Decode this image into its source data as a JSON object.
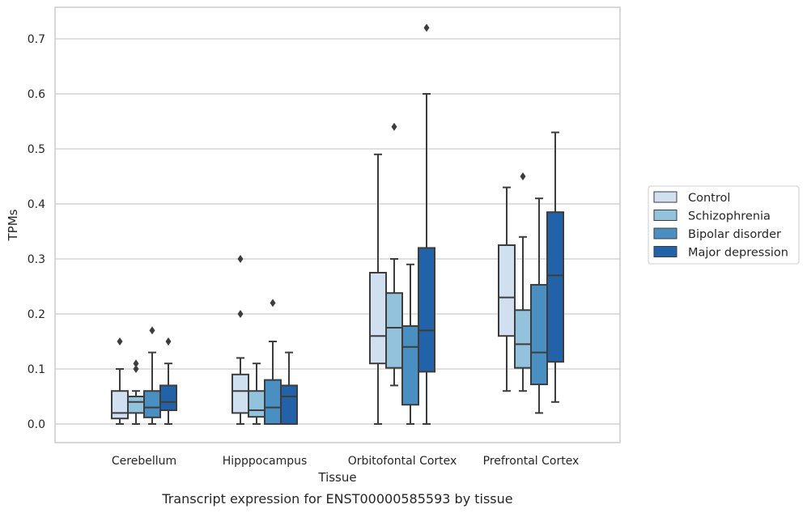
{
  "chart_data": {
    "type": "boxplot",
    "xlabel": "Tissue",
    "ylabel": "TPMs",
    "caption": "Transcript expression for ENST00000585593 by tissue",
    "ylim": [
      -0.035,
      0.76
    ],
    "yticks": [
      0.0,
      0.1,
      0.2,
      0.3,
      0.4,
      0.5,
      0.6,
      0.7
    ],
    "ytick_labels": [
      "0.0",
      "0.1",
      "0.2",
      "0.3",
      "0.4",
      "0.5",
      "0.6",
      "0.7"
    ],
    "grid": "horizontal",
    "legend_position": "right",
    "categories": [
      "Cerebellum",
      "Hipppocampus",
      "Orbitofontal Cortex",
      "Prefrontal Cortex"
    ],
    "series": [
      {
        "name": "Control",
        "color": "#d1e0f0",
        "boxes": [
          {
            "whisker_low": 0.0,
            "q1": 0.01,
            "median": 0.02,
            "q3": 0.06,
            "whisker_high": 0.1,
            "outliers": [
              0.15
            ]
          },
          {
            "whisker_low": 0.0,
            "q1": 0.02,
            "median": 0.06,
            "q3": 0.09,
            "whisker_high": 0.12,
            "outliers": [
              0.2,
              0.3
            ]
          },
          {
            "whisker_low": 0.0,
            "q1": 0.11,
            "median": 0.16,
            "q3": 0.275,
            "whisker_high": 0.49,
            "outliers": []
          },
          {
            "whisker_low": 0.06,
            "q1": 0.16,
            "median": 0.23,
            "q3": 0.325,
            "whisker_high": 0.43,
            "outliers": []
          }
        ]
      },
      {
        "name": "Schizophrenia",
        "color": "#93c2dd",
        "boxes": [
          {
            "whisker_low": 0.0,
            "q1": 0.02,
            "median": 0.04,
            "q3": 0.05,
            "whisker_high": 0.06,
            "outliers": [
              0.1,
              0.11
            ]
          },
          {
            "whisker_low": 0.0,
            "q1": 0.013,
            "median": 0.025,
            "q3": 0.06,
            "whisker_high": 0.11,
            "outliers": []
          },
          {
            "whisker_low": 0.07,
            "q1": 0.102,
            "median": 0.175,
            "q3": 0.238,
            "whisker_high": 0.3,
            "outliers": [
              0.54
            ]
          },
          {
            "whisker_low": 0.06,
            "q1": 0.102,
            "median": 0.145,
            "q3": 0.207,
            "whisker_high": 0.34,
            "outliers": [
              0.45
            ]
          }
        ]
      },
      {
        "name": "Bipolar disorder",
        "color": "#4a8fc2",
        "boxes": [
          {
            "whisker_low": 0.0,
            "q1": 0.012,
            "median": 0.03,
            "q3": 0.06,
            "whisker_high": 0.13,
            "outliers": [
              0.17
            ]
          },
          {
            "whisker_low": 0.0,
            "q1": 0.0,
            "median": 0.03,
            "q3": 0.08,
            "whisker_high": 0.15,
            "outliers": [
              0.22
            ]
          },
          {
            "whisker_low": 0.0,
            "q1": 0.035,
            "median": 0.14,
            "q3": 0.178,
            "whisker_high": 0.29,
            "outliers": []
          },
          {
            "whisker_low": 0.02,
            "q1": 0.072,
            "median": 0.13,
            "q3": 0.253,
            "whisker_high": 0.41,
            "outliers": []
          }
        ]
      },
      {
        "name": "Major depression",
        "color": "#2262a8",
        "boxes": [
          {
            "whisker_low": 0.0,
            "q1": 0.025,
            "median": 0.04,
            "q3": 0.07,
            "whisker_high": 0.11,
            "outliers": [
              0.15
            ]
          },
          {
            "whisker_low": 0.0,
            "q1": 0.0,
            "median": 0.05,
            "q3": 0.07,
            "whisker_high": 0.13,
            "outliers": []
          },
          {
            "whisker_low": 0.0,
            "q1": 0.095,
            "median": 0.17,
            "q3": 0.32,
            "whisker_high": 0.6,
            "outliers": [
              0.72
            ]
          },
          {
            "whisker_low": 0.04,
            "q1": 0.113,
            "median": 0.27,
            "q3": 0.385,
            "whisker_high": 0.53,
            "outliers": []
          }
        ]
      }
    ]
  }
}
